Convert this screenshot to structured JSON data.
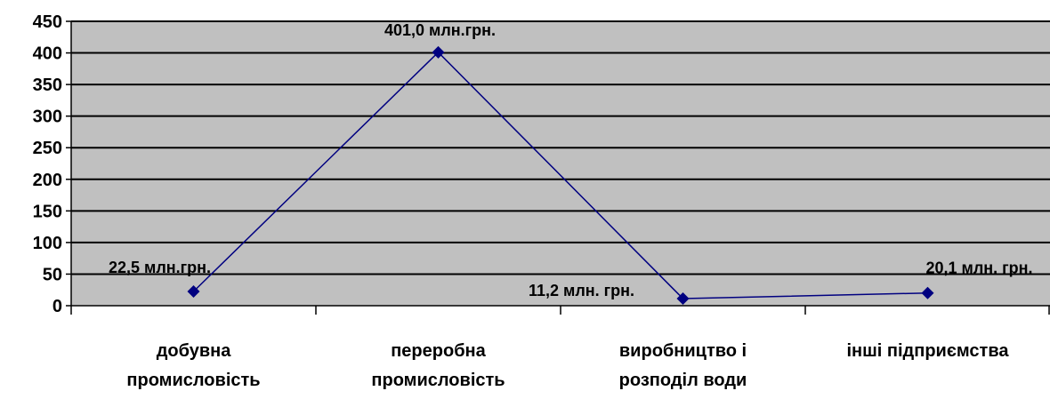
{
  "chart_data": {
    "type": "line",
    "categories": [
      [
        "добувна",
        "промисловість"
      ],
      [
        "переробна",
        "промисловість"
      ],
      [
        "виробництво і",
        "розподіл води"
      ],
      [
        "інші підприємства"
      ]
    ],
    "series": [
      {
        "values": [
          22.5,
          401.0,
          11.2,
          20.1
        ],
        "data_labels": [
          "22,5 млн.грн.",
          "401,0 млн.грн.",
          "11,2 млн. грн.",
          "20,1 млн. грн."
        ]
      }
    ],
    "yticks": [
      0,
      50,
      100,
      150,
      200,
      250,
      300,
      350,
      400,
      450
    ],
    "ylim": [
      0,
      450
    ],
    "grid": true,
    "legend": "none",
    "colors": {
      "plot_background": "#c0c0c0",
      "line": "#000080",
      "gridline": "#000000"
    }
  }
}
